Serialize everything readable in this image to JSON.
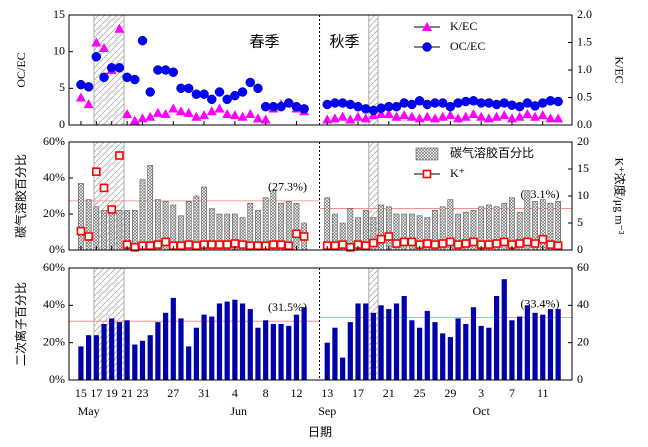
{
  "chart_data": {
    "type": "multi-panel",
    "x": [
      0,
      1,
      2,
      3,
      4,
      5,
      6,
      7,
      8,
      9,
      10,
      11,
      12,
      13,
      14,
      15,
      16,
      17,
      18,
      19,
      20,
      21,
      22,
      23,
      24,
      25,
      26,
      27,
      28,
      29,
      32,
      33,
      34,
      35,
      36,
      37,
      38,
      39,
      40,
      41,
      42,
      43,
      44,
      45,
      46,
      47,
      48,
      49,
      50,
      51,
      52,
      53,
      54,
      55,
      56,
      57,
      58,
      59,
      60,
      61,
      62
    ],
    "xlim": [
      -1.55,
      63.8
    ],
    "xticks": [
      {
        "value": 0,
        "label": "15"
      },
      {
        "value": 2,
        "label": "17"
      },
      {
        "value": 4,
        "label": "19"
      },
      {
        "value": 6,
        "label": "21"
      },
      {
        "value": 8,
        "label": "23"
      },
      {
        "value": 12,
        "label": "27"
      },
      {
        "value": 16,
        "label": "31"
      },
      {
        "value": 20,
        "label": "4"
      },
      {
        "value": 24,
        "label": "8"
      },
      {
        "value": 28,
        "label": "12"
      },
      {
        "value": 32,
        "label": "13"
      },
      {
        "value": 36,
        "label": "17"
      },
      {
        "value": 40,
        "label": "21"
      },
      {
        "value": 44,
        "label": "25"
      },
      {
        "value": 48,
        "label": "29"
      },
      {
        "value": 52,
        "label": "3"
      },
      {
        "value": 56,
        "label": "7"
      },
      {
        "value": 60,
        "label": "11"
      }
    ],
    "month_labels": [
      {
        "value": 1,
        "label": "May"
      },
      {
        "value": 20.5,
        "label": "Jun"
      },
      {
        "value": 32,
        "label": "Sep"
      },
      {
        "value": 52,
        "label": "Oct"
      }
    ],
    "xlabel": "日期",
    "divider": 31,
    "shaded_spans": [
      [
        1.7,
        5.6
      ],
      [
        37.4,
        38.6
      ]
    ],
    "season_labels": [
      "春季",
      "秋季"
    ],
    "panels": [
      {
        "type": "scatter",
        "ylabel": "OC/EC",
        "y2label": "K/EC",
        "ylim": [
          0,
          15
        ],
        "yticks": [
          0,
          5,
          10,
          15
        ],
        "y2lim": [
          0,
          2.0
        ],
        "y2ticks": [
          {
            "value": 0,
            "label": "0.0"
          },
          {
            "value": 0.5,
            "label": "0.5"
          },
          {
            "value": 1,
            "label": "1.0"
          },
          {
            "value": 1.5,
            "label": "1.5"
          },
          {
            "value": 2,
            "label": "2.0"
          }
        ],
        "legend": "upper right",
        "series": [
          {
            "name": "K/EC",
            "mark": "triangle",
            "color": "#ff00ff",
            "axis": "y2",
            "values": [
              0.5,
              0.38,
              1.5,
              1.4,
              1.0,
              1.75,
              0.2,
              0.08,
              0.12,
              0.15,
              0.22,
              0.2,
              0.3,
              0.25,
              0.22,
              0.15,
              0.18,
              0.25,
              0.3,
              0.2,
              0.18,
              0.15,
              0.2,
              0.12,
              0.1,
              0.3,
              0.38,
              0.4,
              0.3,
              0.25,
              0.1,
              0.12,
              0.15,
              0.1,
              0.15,
              0.12,
              0.18,
              0.2,
              0.2,
              0.15,
              0.18,
              0.15,
              0.12,
              0.15,
              0.12,
              0.15,
              0.18,
              0.12,
              0.15,
              0.2,
              0.15,
              0.12,
              0.15,
              0.18,
              0.12,
              0.15,
              0.2,
              0.15,
              0.18,
              0.12,
              0.12
            ]
          },
          {
            "name": "OC/EC",
            "mark": "circle",
            "color": "#0000ff",
            "axis": "y",
            "values": [
              5.5,
              5.2,
              9.3,
              6.5,
              7.8,
              7.8,
              6.5,
              6.2,
              11.5,
              4.5,
              7.5,
              7.5,
              7.2,
              5,
              5,
              4.2,
              4.2,
              3.5,
              4.5,
              3.5,
              4,
              4.5,
              5.8,
              5,
              2.5,
              2.5,
              2.5,
              3,
              2.5,
              2.2,
              2.8,
              3,
              3,
              2.8,
              2.5,
              2.2,
              2,
              2.3,
              2.5,
              2.5,
              3,
              2.8,
              3.3,
              2.8,
              3,
              3,
              2.5,
              3,
              3.2,
              3.3,
              3,
              3,
              2.8,
              3,
              2.7,
              2.5,
              3,
              2.6,
              3,
              3.3,
              3.2
            ]
          }
        ]
      },
      {
        "type": "bar",
        "ylabel": "碳气溶胶百分比",
        "y2label": "K⁺浓度/μg m⁻³",
        "ylim": [
          0,
          60
        ],
        "yticks": [
          {
            "value": 0,
            "label": "0%"
          },
          {
            "value": 20,
            "label": "20%"
          },
          {
            "value": 40,
            "label": "40%"
          },
          {
            "value": 60,
            "label": "60%"
          }
        ],
        "y2lim": [
          0,
          20
        ],
        "y2ticks": [
          0,
          5,
          10,
          15,
          20
        ],
        "legend": "upper right",
        "ref_lines": [
          {
            "value": 27.3,
            "label": "(27.3%)"
          },
          {
            "value": 23.1,
            "label": "(23.1%)"
          }
        ],
        "series": [
          {
            "name": "碳气溶胶百分比",
            "mark": "bar",
            "color": "#888888",
            "axis": "y",
            "values": [
              37,
              28,
              24,
              22,
              22,
              22,
              22,
              22,
              39,
              47,
              28,
              27,
              25,
              19,
              27,
              30,
              35,
              23,
              20,
              20,
              20,
              18,
              26,
              22,
              29,
              33,
              26,
              27,
              26,
              15,
              29,
              20,
              15,
              23,
              18,
              22,
              18,
              25,
              24,
              20,
              20,
              20,
              19,
              18,
              22,
              24,
              28,
              20,
              21,
              22,
              24,
              25,
              24,
              26,
              29,
              21,
              33,
              27,
              28,
              26,
              27
            ]
          },
          {
            "name": "K⁺",
            "mark": "square",
            "color": "#ff0000",
            "axis": "y2",
            "values": [
              3.5,
              2.5,
              14.5,
              11.5,
              7.5,
              17.5,
              1,
              0.5,
              0.8,
              0.8,
              1,
              1.5,
              0.8,
              0.8,
              1,
              0.8,
              1,
              1,
              1,
              1,
              1.2,
              1,
              0.8,
              0.8,
              0.8,
              1,
              1,
              0.8,
              3,
              2.5,
              0.8,
              0.8,
              1,
              0.5,
              1,
              0.8,
              1.3,
              2,
              2.5,
              1.2,
              1.5,
              1.5,
              1,
              1.2,
              1,
              1.2,
              1.5,
              1,
              1.2,
              1.5,
              1,
              1,
              1.2,
              1.5,
              1,
              1.2,
              1.5,
              1.2,
              2,
              1,
              0.8
            ]
          }
        ]
      },
      {
        "type": "bar",
        "ylabel": "二次离子百分比",
        "ylim": [
          0,
          60
        ],
        "yticks": [
          {
            "value": 0,
            "label": "0%"
          },
          {
            "value": 20,
            "label": "20%"
          },
          {
            "value": 40,
            "label": "40%"
          },
          {
            "value": 60,
            "label": "60%"
          }
        ],
        "y2lim": [
          0,
          60
        ],
        "y2ticks": [
          0,
          20,
          40,
          60
        ],
        "ref_lines": [
          {
            "value": 31.5,
            "label": "(31.5%)"
          },
          {
            "value": 33.4,
            "label": "(33.4%)"
          }
        ],
        "series": [
          {
            "mark": "bar",
            "color": "#0000aa",
            "axis": "y",
            "values": [
              18,
              24,
              24,
              30,
              33,
              31,
              32,
              19,
              21,
              24,
              31,
              36,
              44,
              33,
              18,
              28,
              35,
              34,
              41,
              42,
              43,
              41,
              38,
              28,
              32,
              30,
              30,
              29,
              35,
              39,
              20,
              28,
              12,
              31,
              41,
              41,
              36,
              40,
              38,
              41,
              45,
              32,
              28,
              37,
              31,
              25,
              23,
              33,
              30,
              39,
              29,
              28,
              45,
              54,
              32,
              34,
              40,
              36,
              35,
              38,
              38
            ]
          }
        ]
      }
    ]
  }
}
